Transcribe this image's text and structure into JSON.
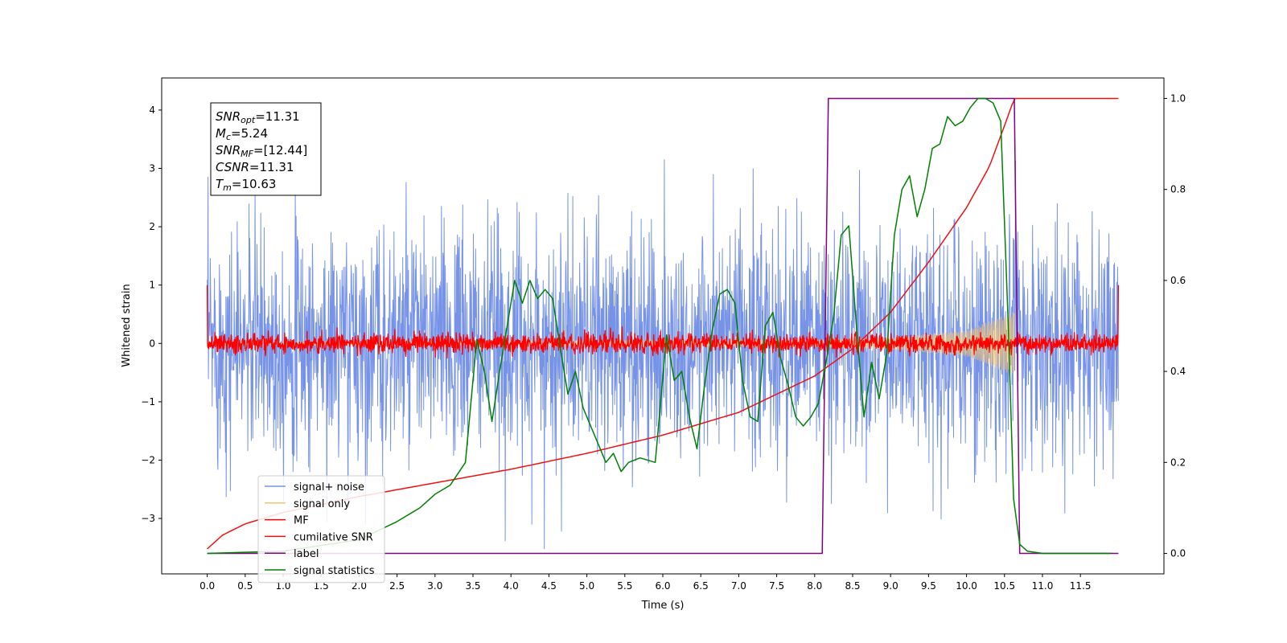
{
  "chart_data": {
    "type": "line",
    "title": "",
    "xlabel": "Time (s)",
    "ylabel": "Whitened strain",
    "xlim": [
      -0.6,
      12.6
    ],
    "ylim": [
      -3.95,
      4.55
    ],
    "y2lim": [
      -0.045,
      1.045
    ],
    "grid": false,
    "legend_position": "lower-left",
    "x_ticks": [
      0.0,
      0.5,
      1.0,
      1.5,
      2.0,
      2.5,
      3.0,
      3.5,
      4.0,
      4.5,
      5.0,
      5.5,
      6.0,
      6.5,
      7.0,
      7.5,
      8.0,
      8.5,
      9.0,
      9.5,
      10.0,
      10.5,
      11.0,
      11.5
    ],
    "x_tick_labels": [
      "0.0",
      "0.5",
      "1.0",
      "1.5",
      "2.0",
      "2.5",
      "3.0",
      "3.5",
      "4.0",
      "4.5",
      "5.0",
      "5.5",
      "6.0",
      "6.5",
      "7.0",
      "7.5",
      "8.0",
      "8.5",
      "9.0",
      "9.5",
      "10.0",
      "10.5",
      "11.0",
      "11.5"
    ],
    "y_ticks": [
      -3,
      -2,
      -1,
      0,
      1,
      2,
      3,
      4
    ],
    "y_tick_labels": [
      "−3",
      "−2",
      "−1",
      "0",
      "1",
      "2",
      "3",
      "4"
    ],
    "y2_ticks": [
      0.0,
      0.2,
      0.4,
      0.6,
      0.8,
      1.0
    ],
    "y2_tick_labels": [
      "0.0",
      "0.2",
      "0.4",
      "0.6",
      "0.8",
      "1.0"
    ],
    "annotation": {
      "lines": [
        {
          "main": "SNR",
          "sub": "opt",
          "value": "=11.31"
        },
        {
          "main": "M",
          "sub": "c",
          "value": "=5.24"
        },
        {
          "main": "SNR",
          "sub": "MF",
          "value": "=[12.44]"
        },
        {
          "main": "CSNR",
          "sub": "",
          "value": "=11.31"
        },
        {
          "main": "T",
          "sub": "m",
          "value": "=10.63"
        }
      ]
    },
    "series": [
      {
        "name": "signal+ noise",
        "color": "#7793e8",
        "axis": "left",
        "kind": "noise",
        "x_range": [
          0,
          12
        ],
        "amplitude": 1.0
      },
      {
        "name": "signal only",
        "color": "#f5c56e",
        "axis": "left",
        "kind": "chirp",
        "x_range": [
          0,
          10.63
        ],
        "envelope": [
          [
            0,
            0.03
          ],
          [
            8.0,
            0.06
          ],
          [
            9.0,
            0.1
          ],
          [
            10.0,
            0.22
          ],
          [
            10.63,
            0.55
          ]
        ]
      },
      {
        "name": "MF",
        "color": "#ff0000",
        "axis": "left",
        "kind": "noise",
        "x_range": [
          0,
          12
        ],
        "amplitude": 0.08,
        "edge_values": [
          1.0,
          1.0
        ]
      },
      {
        "name": "cumilative SNR",
        "color": "#ee1111",
        "axis": "right",
        "x": [
          0.0,
          0.2,
          0.5,
          1.0,
          2.0,
          3.0,
          4.0,
          5.0,
          6.0,
          7.0,
          8.0,
          8.5,
          9.0,
          9.5,
          10.0,
          10.3,
          10.5,
          10.63,
          12.0
        ],
        "values": [
          0.01,
          0.04,
          0.065,
          0.09,
          0.125,
          0.155,
          0.185,
          0.22,
          0.26,
          0.31,
          0.39,
          0.45,
          0.53,
          0.64,
          0.76,
          0.85,
          0.94,
          1.0,
          1.0
        ]
      },
      {
        "name": "label",
        "color": "#800080",
        "axis": "right",
        "x": [
          0.0,
          8.1,
          8.18,
          10.63,
          10.7,
          12.0
        ],
        "values": [
          0.0,
          0.0,
          1.0,
          1.0,
          0.0,
          0.0
        ]
      },
      {
        "name": "signal statistics",
        "color": "#008000",
        "axis": "right",
        "x": [
          0.0,
          1.0,
          2.0,
          2.5,
          2.8,
          3.0,
          3.2,
          3.4,
          3.55,
          3.65,
          3.75,
          3.85,
          3.95,
          4.05,
          4.15,
          4.25,
          4.35,
          4.45,
          4.55,
          4.65,
          4.75,
          4.85,
          4.95,
          5.05,
          5.15,
          5.25,
          5.35,
          5.45,
          5.55,
          5.7,
          5.9,
          6.05,
          6.15,
          6.25,
          6.35,
          6.45,
          6.55,
          6.65,
          6.75,
          6.85,
          6.95,
          7.05,
          7.15,
          7.25,
          7.35,
          7.45,
          7.55,
          7.65,
          7.75,
          7.85,
          7.95,
          8.05,
          8.15,
          8.25,
          8.35,
          8.45,
          8.55,
          8.65,
          8.75,
          8.85,
          8.95,
          9.05,
          9.15,
          9.25,
          9.35,
          9.45,
          9.55,
          9.65,
          9.75,
          9.85,
          9.95,
          10.05,
          10.15,
          10.25,
          10.35,
          10.45,
          10.55,
          10.62,
          10.7,
          10.8,
          11.0,
          11.5,
          11.9
        ],
        "values": [
          0.0,
          0.005,
          0.03,
          0.07,
          0.1,
          0.13,
          0.15,
          0.2,
          0.47,
          0.4,
          0.29,
          0.4,
          0.5,
          0.6,
          0.55,
          0.6,
          0.56,
          0.58,
          0.56,
          0.45,
          0.35,
          0.4,
          0.32,
          0.28,
          0.24,
          0.2,
          0.22,
          0.18,
          0.2,
          0.21,
          0.2,
          0.48,
          0.38,
          0.4,
          0.3,
          0.23,
          0.37,
          0.49,
          0.57,
          0.58,
          0.55,
          0.38,
          0.3,
          0.29,
          0.5,
          0.53,
          0.43,
          0.37,
          0.3,
          0.28,
          0.3,
          0.33,
          0.42,
          0.52,
          0.7,
          0.72,
          0.5,
          0.3,
          0.42,
          0.34,
          0.44,
          0.7,
          0.8,
          0.83,
          0.74,
          0.8,
          0.89,
          0.9,
          0.96,
          0.94,
          0.95,
          0.98,
          1.0,
          1.0,
          0.99,
          0.95,
          0.5,
          0.12,
          0.02,
          0.005,
          0.0,
          0.0,
          0.0
        ]
      }
    ]
  }
}
